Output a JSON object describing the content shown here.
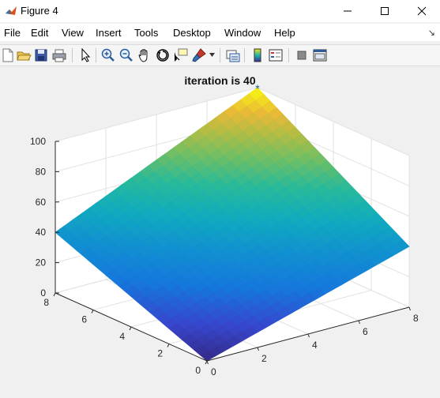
{
  "window": {
    "title": "Figure 4"
  },
  "menu": {
    "items": [
      "File",
      "Edit",
      "View",
      "Insert",
      "Tools",
      "Desktop",
      "Window",
      "Help"
    ]
  },
  "toolbar": {
    "buttons": [
      "new-figure",
      "open-file",
      "save",
      "print",
      "edit-plot",
      "zoom-in",
      "zoom-out",
      "pan",
      "rotate-3d",
      "data-cursor",
      "brush",
      "link-plot",
      "insert-colorbar",
      "insert-legend",
      "hide-plot-tools",
      "show-plot-tools"
    ]
  },
  "plot": {
    "title": "iteration is 40",
    "marker": "*",
    "marker_color": "#1f5f8b"
  },
  "chart_data": {
    "type": "surface",
    "title": "iteration is 40",
    "x_ticks": [
      "0",
      "2",
      "4",
      "6",
      "8"
    ],
    "y_ticks": [
      "0",
      "2",
      "4",
      "6",
      "8"
    ],
    "z_ticks": [
      "0",
      "20",
      "40",
      "60",
      "80",
      "100"
    ],
    "xlim": [
      0,
      8
    ],
    "ylim": [
      0,
      8
    ],
    "zlim": [
      0,
      100
    ],
    "corner_values": {
      "x0_y0": 0,
      "x8_y0": 40,
      "x0_y8": 40,
      "x8_y8": 100
    },
    "peak_marker": {
      "x": 8,
      "y": 8,
      "z": 100
    },
    "colormap": "parula",
    "grid": true
  }
}
